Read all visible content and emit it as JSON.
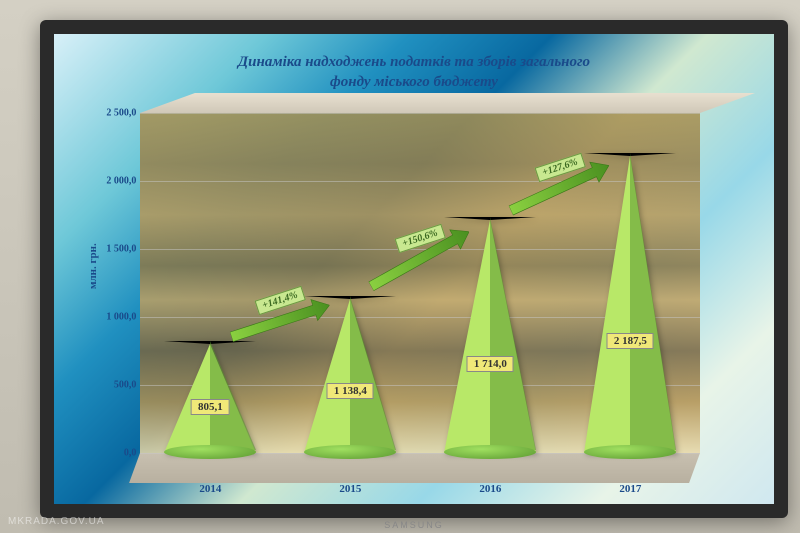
{
  "title_line1": "Динаміка надходжень податків та зборів загального",
  "title_line2": "фонду міського бюджету",
  "ylabel": "млн. грн.",
  "y_axis": {
    "min": 0,
    "max": 2500,
    "ticks": [
      0,
      500,
      1000,
      1500,
      2000,
      2500
    ],
    "tick_labels": [
      "0,0",
      "500,0",
      "1 000,0",
      "1 500,0",
      "2 000,0",
      "2 500,0"
    ]
  },
  "categories": [
    "2014",
    "2015",
    "2016",
    "2017"
  ],
  "values": [
    805.1,
    1138.4,
    1714.0,
    2187.5
  ],
  "value_labels": [
    "805,1",
    "1 138,4",
    "1 714,0",
    "2 187,5"
  ],
  "growth": [
    "+141,4%",
    "+150,6%",
    "+127,6%"
  ],
  "cone_color_left": "#b8e868",
  "cone_color_right": "#5a9830",
  "chart_bg_tint": "#a89050",
  "title_color": "#1a4a8a",
  "axis_color": "#1a4a8a",
  "value_label_bg": "#f0e878",
  "growth_label_bg": "#c8e890",
  "brand": "SAMSUNG",
  "watermark": "MKRADA.GOV.UA"
}
